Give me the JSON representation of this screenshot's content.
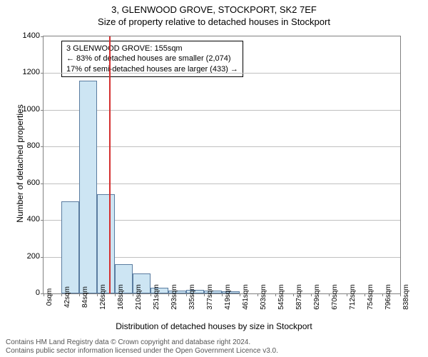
{
  "title": "3, GLENWOOD GROVE, STOCKPORT, SK2 7EF",
  "subtitle": "Size of property relative to detached houses in Stockport",
  "y_axis_label": "Number of detached properties",
  "x_axis_label": "Distribution of detached houses by size in Stockport",
  "chart": {
    "type": "bar",
    "x_tick_labels": [
      "0sqm",
      "42sqm",
      "84sqm",
      "126sqm",
      "168sqm",
      "210sqm",
      "251sqm",
      "293sqm",
      "335sqm",
      "377sqm",
      "419sqm",
      "461sqm",
      "503sqm",
      "545sqm",
      "587sqm",
      "629sqm",
      "670sqm",
      "712sqm",
      "754sqm",
      "796sqm",
      "838sqm"
    ],
    "bars": [
      {
        "value": 0
      },
      {
        "value": 500
      },
      {
        "value": 1160
      },
      {
        "value": 540
      },
      {
        "value": 160
      },
      {
        "value": 110
      },
      {
        "value": 30
      },
      {
        "value": 15
      },
      {
        "value": 20
      },
      {
        "value": 15
      },
      {
        "value": 10
      },
      {
        "value": 0
      },
      {
        "value": 0
      },
      {
        "value": 0
      },
      {
        "value": 0
      },
      {
        "value": 0
      },
      {
        "value": 0
      },
      {
        "value": 0
      },
      {
        "value": 0
      },
      {
        "value": 0
      }
    ],
    "bar_fill": "#cde5f3",
    "bar_border": "#5a7ca0",
    "y_ticks": [
      0,
      200,
      400,
      600,
      800,
      1000,
      1200,
      1400
    ],
    "y_max": 1400,
    "marker_value": 155,
    "marker_color": "#d43030",
    "grid_color": "#c0c0c0",
    "border_color": "#808080",
    "background": "#ffffff",
    "x_max_sqm": 838
  },
  "annotation": {
    "line1": "3 GLENWOOD GROVE: 155sqm",
    "line2": "← 83% of detached houses are smaller (2,074)",
    "line3": "17% of semi-detached houses are larger (433) →"
  },
  "footer": {
    "line1": "Contains HM Land Registry data © Crown copyright and database right 2024.",
    "line2": "Contains public sector information licensed under the Open Government Licence v3.0."
  }
}
